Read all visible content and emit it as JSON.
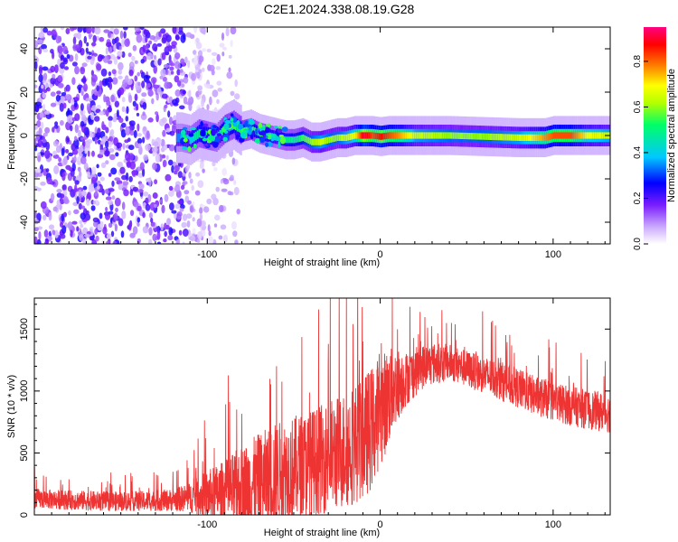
{
  "figure_title": "C2E1.2024.338.08.19.G28",
  "chart_data": [
    {
      "type": "heatmap",
      "xlabel": "Height of straight line (km)",
      "ylabel": "Frequency (Hz)",
      "xlim": [
        -200,
        133
      ],
      "ylim": [
        -50,
        50
      ],
      "xticks": [
        -100,
        0,
        100
      ],
      "xtick_labels": [
        "-100",
        "0",
        "100"
      ],
      "yticks": [
        -40,
        -20,
        0,
        20,
        40
      ],
      "ytick_labels": [
        "-40",
        "-20",
        "0",
        "20",
        "40"
      ],
      "colorbar": {
        "label": "Normalized spectral amplitude",
        "range": [
          0,
          0.95
        ],
        "ticks": [
          0.0,
          0.2,
          0.4,
          0.6,
          0.8
        ],
        "tick_labels": [
          "0.0",
          "0.2",
          "0.4",
          "0.6",
          "0.8"
        ],
        "colormap": [
          "#ffffff",
          "#c9a8ff",
          "#7a1cff",
          "#0000ff",
          "#00c8ff",
          "#00ff66",
          "#b4ff00",
          "#ffff00",
          "#ff8000",
          "#ff0000",
          "#ff0080"
        ]
      },
      "ridge": {
        "height_km": [
          -115,
          -110,
          -105,
          -100,
          -95,
          -90,
          -85,
          -80,
          -75,
          -70,
          -65,
          -60,
          -55,
          -50,
          -45,
          -40,
          -35,
          -30,
          -25,
          -20,
          -15,
          -10,
          -5,
          0,
          5,
          10,
          20,
          40,
          60,
          80,
          95,
          100,
          110,
          120,
          133
        ],
        "frequency_hz": [
          -1,
          -2,
          1,
          0,
          -1,
          3,
          5,
          2,
          3,
          1,
          0,
          -1,
          -2,
          -2,
          -1,
          -3,
          -3,
          -2,
          -1,
          -1,
          0,
          0,
          0,
          -0.5,
          0,
          0,
          0,
          0,
          -0.5,
          -1,
          -1,
          0,
          0,
          0,
          0
        ],
        "amplitude": [
          0.35,
          0.4,
          0.45,
          0.45,
          0.4,
          0.5,
          0.45,
          0.5,
          0.5,
          0.45,
          0.45,
          0.4,
          0.45,
          0.45,
          0.5,
          0.55,
          0.6,
          0.55,
          0.55,
          0.6,
          0.65,
          0.9,
          0.8,
          0.85,
          0.8,
          0.75,
          0.6,
          0.55,
          0.55,
          0.6,
          0.75,
          0.8,
          0.8,
          0.65,
          0.6
        ]
      },
      "noise_region_km": [
        -200,
        -112
      ]
    },
    {
      "type": "line",
      "xlabel": "Height of straight line (km)",
      "ylabel": "SNR (10 * v/v)",
      "xlim": [
        -200,
        133
      ],
      "ylim": [
        0,
        1750
      ],
      "xticks": [
        -100,
        0,
        100
      ],
      "xtick_labels": [
        "-100",
        "0",
        "100"
      ],
      "yticks": [
        0,
        500,
        1000,
        1500
      ],
      "ytick_labels": [
        "0",
        "500",
        "1000",
        "1500"
      ],
      "line_color": "#ee3333",
      "envelope": {
        "height_km": [
          -200,
          -180,
          -160,
          -140,
          -120,
          -110,
          -100,
          -90,
          -80,
          -70,
          -60,
          -50,
          -40,
          -30,
          -20,
          -10,
          -5,
          0,
          5,
          7,
          10,
          15,
          20,
          25,
          30,
          40,
          50,
          60,
          70,
          80,
          90,
          100,
          110,
          120,
          133
        ],
        "baseline": [
          130,
          120,
          110,
          110,
          120,
          140,
          160,
          180,
          210,
          260,
          330,
          380,
          420,
          470,
          530,
          620,
          700,
          850,
          950,
          1000,
          1050,
          1100,
          1150,
          1200,
          1220,
          1230,
          1180,
          1130,
          1080,
          1020,
          960,
          920,
          880,
          850,
          820
        ],
        "spread": [
          80,
          80,
          80,
          80,
          90,
          120,
          200,
          260,
          350,
          400,
          420,
          420,
          430,
          450,
          480,
          500,
          500,
          450,
          400,
          350,
          300,
          220,
          200,
          180,
          170,
          150,
          150,
          150,
          160,
          160,
          160,
          160,
          160,
          160,
          160
        ],
        "peak_values": [
          {
            "x": 7,
            "y": 1750
          },
          {
            "x": -83,
            "y": 850
          },
          {
            "x": -60,
            "y": 1200
          },
          {
            "x": -30,
            "y": 1380
          },
          {
            "x": -10,
            "y": 1400
          }
        ]
      }
    }
  ]
}
